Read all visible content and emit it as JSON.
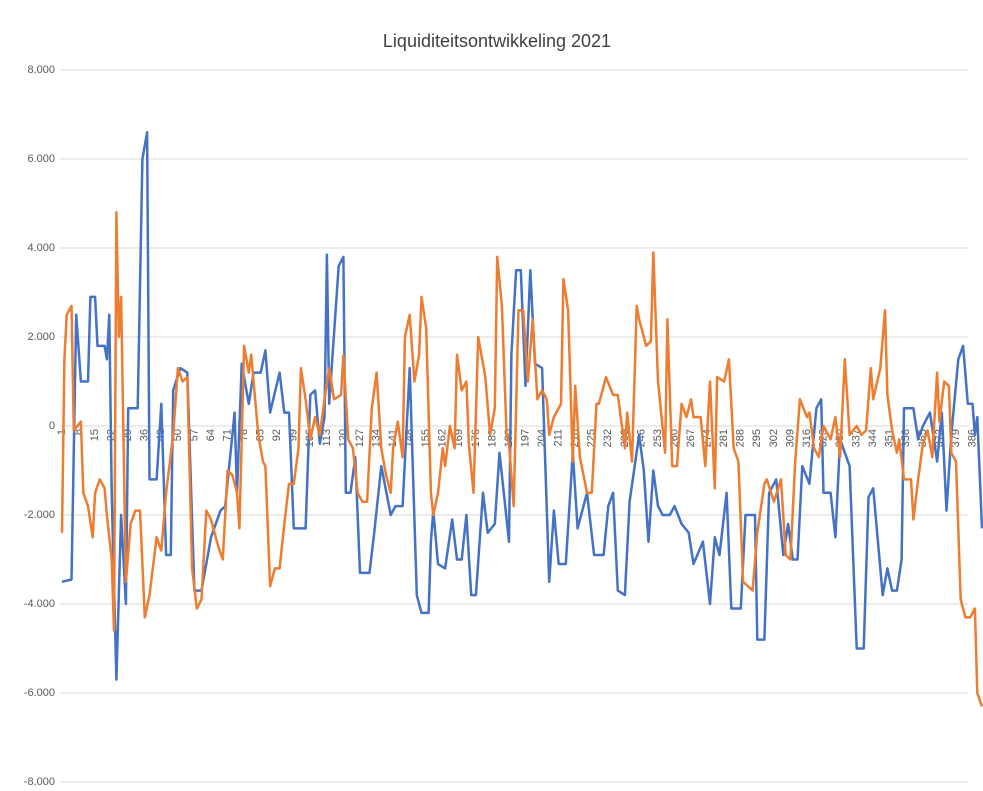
{
  "chart_data": {
    "type": "line",
    "title": "Liquiditeitsontwikkeling 2021",
    "xlim": [
      1,
      390
    ],
    "xticks": [
      1,
      8,
      15,
      22,
      29,
      36,
      43,
      50,
      57,
      64,
      71,
      78,
      85,
      92,
      99,
      106,
      113,
      120,
      127,
      134,
      141,
      148,
      155,
      162,
      169,
      176,
      183,
      190,
      197,
      204,
      211,
      218,
      225,
      232,
      239,
      246,
      253,
      260,
      267,
      274,
      281,
      288,
      295,
      302,
      309,
      316,
      323,
      330,
      337,
      344,
      351,
      358,
      365,
      372,
      379,
      386
    ],
    "ylim": [
      -8000,
      8000
    ],
    "yticks": [
      {
        "value": -8000,
        "label": "-8.000"
      },
      {
        "value": -6000,
        "label": "-6.000"
      },
      {
        "value": -4000,
        "label": "-4.000"
      },
      {
        "value": -2000,
        "label": "-2.000"
      },
      0,
      {
        "value": 2000,
        "label": "2.000"
      },
      {
        "value": 4000,
        "label": "4.000"
      },
      {
        "value": 6000,
        "label": "6.000"
      },
      {
        "value": 8000,
        "label": "8.000"
      }
    ],
    "grid": true,
    "series": [
      {
        "color": "#4472c4",
        "x": [
          1,
          5,
          7,
          9,
          12,
          13,
          15,
          16,
          19,
          20,
          21,
          22,
          24,
          26,
          28,
          29,
          33,
          35,
          37,
          38,
          41,
          43,
          45,
          47,
          48,
          51,
          54,
          57,
          60,
          64,
          68,
          70,
          74,
          75,
          77,
          80,
          82,
          85,
          87,
          89,
          93,
          95,
          97,
          99,
          104,
          106,
          108,
          110,
          112,
          113,
          114,
          118,
          120,
          121,
          123,
          125,
          127,
          131,
          133,
          136,
          140,
          142,
          145,
          148,
          151,
          153,
          156,
          157,
          158,
          160,
          163,
          166,
          168,
          170,
          172,
          174,
          176,
          179,
          181,
          184,
          186,
          190,
          191,
          193,
          195,
          197,
          199,
          201,
          204,
          207,
          209,
          211,
          214,
          217,
          219,
          223,
          226,
          230,
          232,
          234,
          236,
          239,
          241,
          245,
          247,
          249,
          251,
          253,
          255,
          258,
          260,
          263,
          266,
          268,
          272,
          275,
          277,
          279,
          282,
          284,
          288,
          290,
          294,
          295,
          298,
          300,
          303,
          306,
          308,
          310,
          312,
          314,
          317,
          320,
          322,
          323,
          326,
          328,
          330,
          332,
          334,
          337,
          340,
          342,
          344,
          348,
          350,
          352,
          354,
          356,
          357,
          361,
          363,
          365,
          368,
          371,
          373,
          375,
          377,
          380,
          382,
          384,
          386,
          387,
          388,
          390
        ],
        "values": [
          -3500,
          -3450,
          2500,
          1000,
          1000,
          2900,
          2900,
          1800,
          1800,
          1500,
          2500,
          -1500,
          -5700,
          -2000,
          -4000,
          400,
          400,
          6000,
          6600,
          -1200,
          -1200,
          500,
          -2900,
          -2900,
          800,
          1300,
          1200,
          -3700,
          -3700,
          -2500,
          -1900,
          -1800,
          300,
          -1500,
          1400,
          500,
          1200,
          1200,
          1700,
          300,
          1200,
          300,
          300,
          -2300,
          -2300,
          700,
          800,
          -400,
          200,
          3850,
          500,
          3600,
          3800,
          -1500,
          -1500,
          -700,
          -3300,
          -3300,
          -2400,
          -900,
          -2000,
          -1800,
          -1800,
          1300,
          -3800,
          -4200,
          -4200,
          -2600,
          -1900,
          -3100,
          -3200,
          -2100,
          -3000,
          -3000,
          -2000,
          -3800,
          -3800,
          -1500,
          -2400,
          -2200,
          -600,
          -2600,
          1600,
          3500,
          3500,
          900,
          3500,
          1400,
          1300,
          -3500,
          -1900,
          -3100,
          -3100,
          -600,
          -2300,
          -1500,
          -2900,
          -2900,
          -1800,
          -1500,
          -3700,
          -3800,
          -1700,
          -200,
          -1000,
          -2600,
          -1000,
          -1800,
          -2000,
          -2000,
          -1800,
          -2200,
          -2400,
          -3100,
          -2600,
          -4000,
          -2500,
          -2900,
          -1500,
          -4100,
          -4100,
          -2000,
          -2000,
          -4800,
          -4800,
          -1500,
          -1200,
          -2900,
          -2200,
          -3000,
          -3000,
          -900,
          -1300,
          400,
          600,
          -1500,
          -1500,
          -2500,
          -300,
          -600,
          -900,
          -5000,
          -5000,
          -1600,
          -1400,
          -3800,
          -3200,
          -3700,
          -3700,
          -3000,
          400,
          400,
          -300,
          0,
          300,
          -800,
          300,
          -1900,
          -200,
          1500,
          1800,
          500,
          500,
          -200,
          200,
          -2300
        ]
      },
      {
        "color": "#ed7d31",
        "x": [
          1,
          2,
          3,
          5,
          6,
          9,
          10,
          12,
          14,
          15,
          17,
          19,
          20,
          22,
          23,
          24,
          25,
          26,
          28,
          30,
          32,
          34,
          36,
          38,
          41,
          43,
          45,
          48,
          50,
          52,
          54,
          56,
          58,
          60,
          62,
          64,
          67,
          69,
          71,
          73,
          75,
          76,
          78,
          80,
          81,
          84,
          86,
          87,
          89,
          91,
          93,
          95,
          97,
          99,
          101,
          102,
          104,
          106,
          108,
          110,
          112,
          114,
          116,
          119,
          120,
          122,
          124,
          126,
          128,
          130,
          132,
          134,
          136,
          138,
          140,
          141,
          143,
          145,
          146,
          148,
          150,
          152,
          153,
          155,
          157,
          158,
          160,
          162,
          163,
          165,
          167,
          168,
          170,
          172,
          173,
          175,
          177,
          179,
          180,
          182,
          184,
          185,
          187,
          189,
          190,
          192,
          194,
          196,
          198,
          200,
          202,
          204,
          206,
          207,
          209,
          212,
          213,
          215,
          217,
          218,
          220,
          223,
          225,
          227,
          228,
          231,
          234,
          236,
          239,
          240,
          242,
          244,
          245,
          248,
          250,
          251,
          253,
          256,
          257,
          259,
          261,
          263,
          265,
          267,
          268,
          271,
          273,
          275,
          277,
          278,
          281,
          283,
          285,
          287,
          289,
          291,
          293,
          295,
          298,
          299,
          302,
          305,
          307,
          309,
          311,
          313,
          316,
          317,
          319,
          321,
          323,
          326,
          328,
          330,
          332,
          334,
          337,
          339,
          341,
          343,
          344,
          347,
          349,
          350,
          352,
          354,
          355,
          357,
          360,
          361,
          363,
          365,
          367,
          369,
          371,
          372,
          374,
          376,
          377,
          379,
          381,
          383,
          385,
          387,
          388,
          390
        ],
        "values": [
          -2400,
          1500,
          2500,
          2700,
          -100,
          100,
          -1500,
          -1800,
          -2500,
          -1500,
          -1200,
          -1400,
          -2000,
          -3000,
          -4600,
          4800,
          2000,
          2900,
          -3500,
          -2200,
          -1900,
          -1900,
          -4300,
          -3800,
          -2500,
          -2800,
          -1500,
          -200,
          1300,
          1000,
          1100,
          -3200,
          -4100,
          -3900,
          -1900,
          -2100,
          -2700,
          -3000,
          -1000,
          -1100,
          -1500,
          -2300,
          1800,
          1200,
          1600,
          -200,
          -800,
          -900,
          -3600,
          -3200,
          -3200,
          -2200,
          -1300,
          -1300,
          -500,
          1300,
          600,
          -300,
          200,
          -200,
          600,
          1300,
          600,
          700,
          1600,
          -300,
          -500,
          -1500,
          -1700,
          -1700,
          400,
          1200,
          -500,
          -1100,
          -1500,
          -500,
          100,
          -700,
          2000,
          2500,
          1000,
          1600,
          2900,
          2200,
          -1500,
          -2000,
          -1500,
          -500,
          -900,
          0,
          -500,
          1600,
          800,
          1000,
          -400,
          -1500,
          2000,
          1400,
          1100,
          -200,
          400,
          3800,
          2700,
          -200,
          -400,
          -1800,
          2600,
          2600,
          1000,
          2400,
          600,
          800,
          600,
          -200,
          200,
          500,
          3300,
          2600,
          -800,
          900,
          -700,
          -1500,
          -1500,
          500,
          500,
          1100,
          700,
          700,
          -500,
          300,
          -800,
          2700,
          2400,
          1800,
          1900,
          3900,
          1000,
          -600,
          2400,
          -900,
          -900,
          500,
          200,
          600,
          200,
          200,
          -900,
          1000,
          -1400,
          1100,
          1000,
          1500,
          -500,
          -800,
          -3500,
          -3600,
          -3700,
          -2400,
          -1300,
          -1200,
          -1700,
          -1200,
          -2900,
          -3000,
          -800,
          600,
          200,
          300,
          -500,
          -700,
          0,
          -300,
          200,
          -700,
          1500,
          -200,
          0,
          -200,
          -100,
          1300,
          600,
          1300,
          2600,
          700,
          -100,
          -600,
          -300,
          -1200,
          -1200,
          -2100,
          -1200,
          -400,
          -100,
          -700,
          1200,
          100,
          1000,
          900,
          -600,
          -800,
          -3900,
          -4300,
          -4300,
          -4100,
          -6000,
          -6300
        ]
      }
    ]
  }
}
